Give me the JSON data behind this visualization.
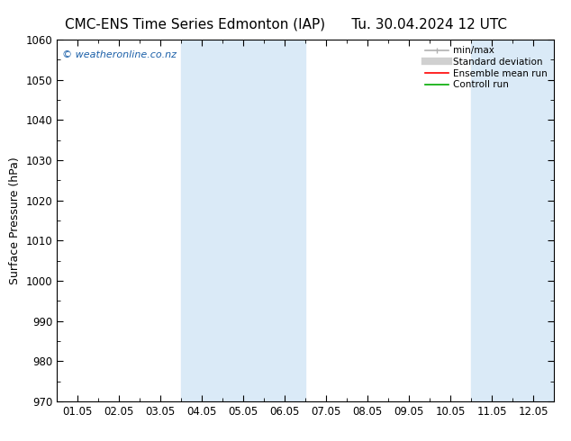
{
  "title_left": "CMC-ENS Time Series Edmonton (IAP)",
  "title_right": "Tu. 30.04.2024 12 UTC",
  "ylabel": "Surface Pressure (hPa)",
  "ylim": [
    970,
    1060
  ],
  "yticks": [
    970,
    980,
    990,
    1000,
    1010,
    1020,
    1030,
    1040,
    1050,
    1060
  ],
  "xtick_labels": [
    "01.05",
    "02.05",
    "03.05",
    "04.05",
    "05.05",
    "06.05",
    "07.05",
    "08.05",
    "09.05",
    "10.05",
    "11.05",
    "12.05"
  ],
  "shaded_bands": [
    {
      "xstart": 3,
      "xend": 5,
      "color": "#daeaf7"
    },
    {
      "xstart": 10,
      "xend": 12,
      "color": "#daeaf7"
    }
  ],
  "legend_entries": [
    {
      "label": "min/max",
      "color": "#b0b0b0",
      "lw": 1.2
    },
    {
      "label": "Standard deviation",
      "color": "#d0d0d0",
      "lw": 6
    },
    {
      "label": "Ensemble mean run",
      "color": "#ff0000",
      "lw": 1.2
    },
    {
      "label": "Controll run",
      "color": "#00aa00",
      "lw": 1.2
    }
  ],
  "watermark": "© weatheronline.co.nz",
  "watermark_color": "#1a5fa8",
  "bg_color": "#ffffff",
  "plot_bg_color": "#ffffff",
  "title_fontsize": 11,
  "tick_fontsize": 8.5,
  "ylabel_fontsize": 9
}
